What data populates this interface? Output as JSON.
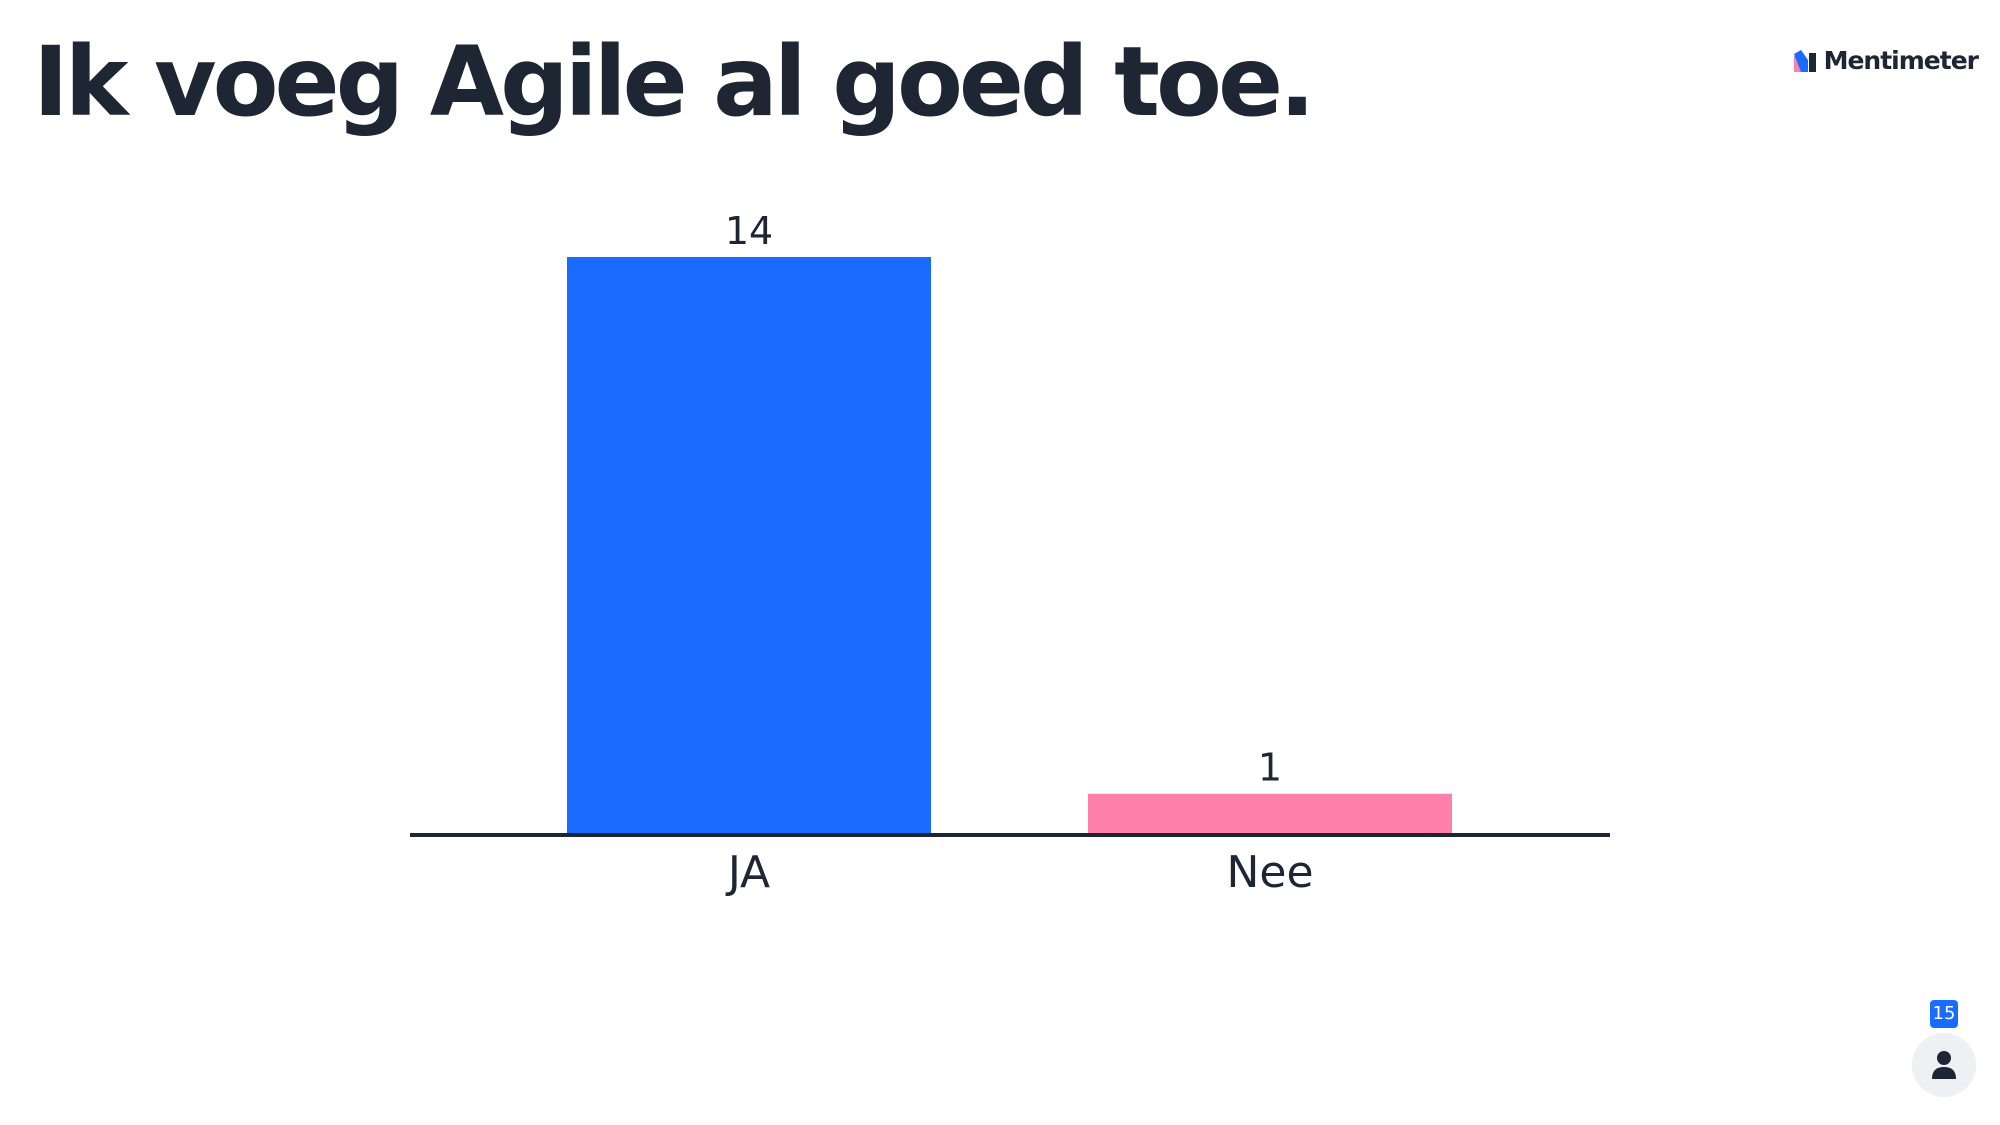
{
  "slide": {
    "title": "Ik voeg Agile al goed toe."
  },
  "brand": {
    "name": "Mentimeter",
    "icon": "mentimeter-logo-icon"
  },
  "participants": {
    "count": "15",
    "icon": "person-icon"
  },
  "colors": {
    "text": "#1e2533",
    "bar_ja": "#196cff",
    "bar_nee": "#ff80ab",
    "axis": "#1e2533",
    "badge": "#196cff"
  },
  "chart_data": {
    "type": "bar",
    "title": "Ik voeg Agile al goed toe.",
    "categories": [
      "JA",
      "Nee"
    ],
    "values": [
      14,
      1
    ],
    "colors": [
      "#196cff",
      "#ff80ab"
    ],
    "ylim": [
      0,
      14
    ],
    "grid": false,
    "legend": "none",
    "value_labels": [
      "14",
      "1"
    ]
  }
}
